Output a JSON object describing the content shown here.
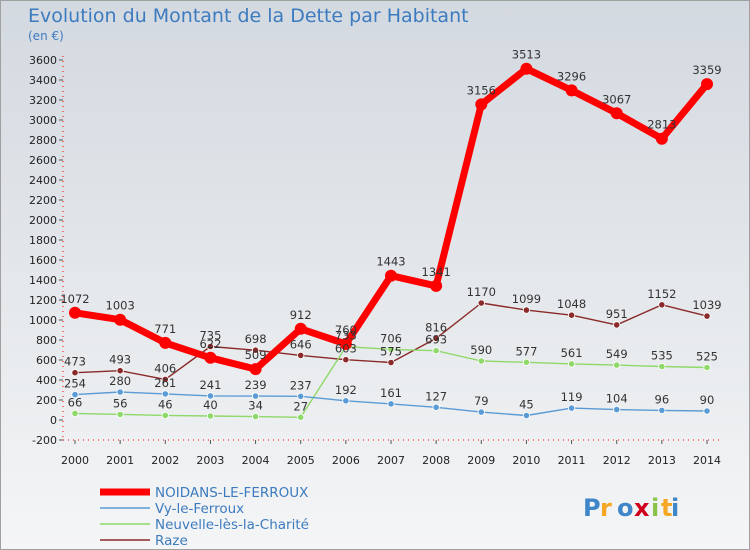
{
  "title": "Evolution du Montant de la Dette par Habitant",
  "unit": "(en €)",
  "logo_text": "Proxiti",
  "chart_data": {
    "type": "line",
    "title": "Evolution du Montant de la Dette par Habitant",
    "ylabel": "(en €)",
    "xlabel": "",
    "x": [
      "2000",
      "2001",
      "2002",
      "2003",
      "2004",
      "2005",
      "2006",
      "2007",
      "2008",
      "2009",
      "2010",
      "2011",
      "2012",
      "2013",
      "2014"
    ],
    "yticks": [
      "-200",
      "0",
      "200",
      "400",
      "600",
      "800",
      "1000",
      "1200",
      "1400",
      "1600",
      "1800",
      "2000",
      "2200",
      "2400",
      "2600",
      "2800",
      "3000",
      "3200",
      "3400",
      "3600"
    ],
    "ylim": [
      -200,
      3600
    ],
    "grid": false,
    "legend_position": "bottom-left",
    "series": [
      {
        "name": "NOIDANS-LE-FERROUX",
        "color": "#ff0000",
        "values": [
          1072,
          1003,
          771,
          622,
          509,
          912,
          760,
          1443,
          1341,
          3156,
          3513,
          3296,
          3067,
          2813,
          3359
        ],
        "labels": [
          "1072",
          "1003",
          "771",
          "622",
          "509",
          "912",
          "760",
          "1443",
          "1341",
          "3156",
          "3513",
          "3296",
          "3067",
          "2813",
          "3359"
        ]
      },
      {
        "name": "Vy-le-Ferroux",
        "color": "#5b9bd5",
        "values": [
          254,
          280,
          261,
          241,
          239,
          237,
          192,
          161,
          127,
          79,
          45,
          119,
          104,
          96,
          90
        ],
        "labels": [
          "254",
          "280",
          "261",
          "241",
          "239",
          "237",
          "192",
          "161",
          "127",
          "79",
          "45",
          "119",
          "104",
          "96",
          "90"
        ]
      },
      {
        "name": "Neuvelle-lès-la-Charité",
        "color": "#8fd86a",
        "values": [
          66,
          56,
          46,
          40,
          34,
          27,
          733,
          706,
          693,
          590,
          577,
          561,
          549,
          535,
          525
        ],
        "labels": [
          "66",
          "56",
          "46",
          "40",
          "34",
          "27",
          "733",
          "706",
          "693",
          "590",
          "577",
          "561",
          "549",
          "535",
          "525"
        ]
      },
      {
        "name": "Raze",
        "color": "#8b2a2a",
        "values": [
          473,
          493,
          406,
          735,
          698,
          646,
          603,
          575,
          816,
          1170,
          1099,
          1048,
          951,
          1152,
          1039
        ],
        "labels": [
          "473",
          "493",
          "406",
          "735",
          "698",
          "646",
          "603",
          "575",
          "816",
          "1170",
          "1099",
          "1048",
          "951",
          "1152",
          "1039"
        ]
      }
    ]
  }
}
